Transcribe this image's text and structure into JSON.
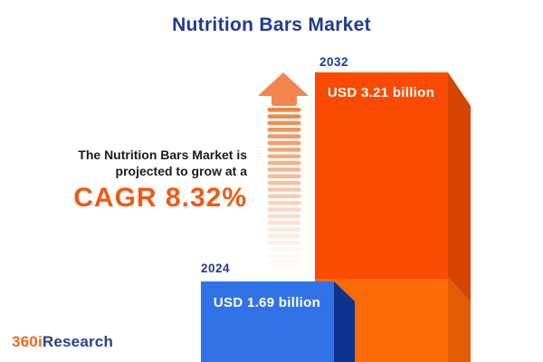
{
  "header": {
    "title": "Nutrition Bars Market"
  },
  "description": {
    "line1": "The Nutrition Bars Market is",
    "line2": "projected to grow at a",
    "cagr": "CAGR 8.32%"
  },
  "chart_data": {
    "type": "bar",
    "title": "Nutrition Bars Market",
    "categories": [
      "2024",
      "2032"
    ],
    "values": [
      1.69,
      3.21
    ],
    "unit": "USD billion",
    "value_labels": [
      "USD 1.69 billion",
      "USD 3.21 billion"
    ],
    "cagr_percent": 8.32,
    "orientation": "vertical",
    "style": "3d-infographic",
    "grid": false,
    "legend": false,
    "bar_colors": [
      "#3173e7",
      "#fb4a03"
    ]
  },
  "bars": {
    "b2024": {
      "year": "2024",
      "label": "USD 1.69 billion"
    },
    "b2032": {
      "year": "2032",
      "label": "USD 3.21 billion"
    }
  },
  "icons": {
    "growth_arrow": "growth-arrow-icon"
  },
  "logo": {
    "part1": "360i",
    "part2": "Research"
  },
  "colors": {
    "title_navy": "#1d3a96",
    "text_dark": "#1c1c1c",
    "cagr_orange": "#f15913",
    "bar2024_front": "#3173e7",
    "bar2024_side": "#0c3390",
    "bar2032_front_top": "#fb4a03",
    "bar2032_front_bottom": "#fc6b06",
    "bar2032_side_top": "#d64401",
    "bar2032_side_bottom": "#e05c05",
    "arrow_head": "#f4854f",
    "arrow_dash": "#ef8443",
    "white": "#ffffff",
    "logo_orange": "#f4671f",
    "logo_navy": "#274292"
  }
}
